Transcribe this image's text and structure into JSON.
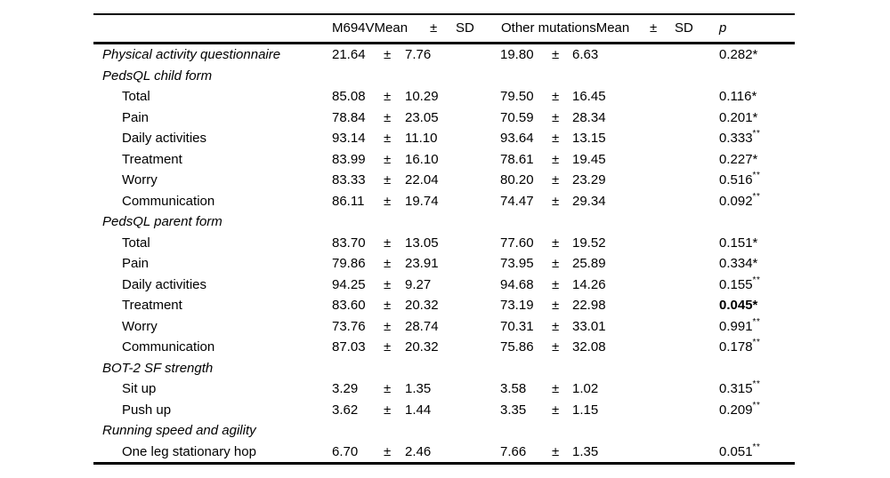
{
  "table": {
    "header": {
      "group1": "M694VMean",
      "pm": "±",
      "sd": "SD",
      "group2": "Other mutationsMean",
      "p": "p"
    },
    "symbols": {
      "plus_minus": "±"
    },
    "rows": [
      {
        "label": "Physical activity questionnaire",
        "indent": false,
        "italic": true,
        "m694v_mean": "21.64",
        "m694v_sd": "7.76",
        "other_mean": "19.80",
        "other_sd": "6.63",
        "p_value": "0.282",
        "p_mark": "*",
        "p_bold": false
      },
      {
        "label": "PedsQL child form",
        "indent": false,
        "italic": true,
        "m694v_mean": "",
        "m694v_sd": "",
        "other_mean": "",
        "other_sd": "",
        "p_value": "",
        "p_mark": "",
        "p_bold": false
      },
      {
        "label": "Total",
        "indent": true,
        "italic": false,
        "m694v_mean": "85.08",
        "m694v_sd": "10.29",
        "other_mean": "79.50",
        "other_sd": "16.45",
        "p_value": "0.116",
        "p_mark": "*",
        "p_bold": false
      },
      {
        "label": "Pain",
        "indent": true,
        "italic": false,
        "m694v_mean": "78.84",
        "m694v_sd": "23.05",
        "other_mean": "70.59",
        "other_sd": "28.34",
        "p_value": "0.201",
        "p_mark": "*",
        "p_bold": false
      },
      {
        "label": "Daily activities",
        "indent": true,
        "italic": false,
        "m694v_mean": "93.14",
        "m694v_sd": "11.10",
        "other_mean": "93.64",
        "other_sd": "13.15",
        "p_value": "0.333",
        "p_mark": "**",
        "p_bold": false
      },
      {
        "label": "Treatment",
        "indent": true,
        "italic": false,
        "m694v_mean": "83.99",
        "m694v_sd": "16.10",
        "other_mean": "78.61",
        "other_sd": "19.45",
        "p_value": "0.227",
        "p_mark": "*",
        "p_bold": false
      },
      {
        "label": "Worry",
        "indent": true,
        "italic": false,
        "m694v_mean": "83.33",
        "m694v_sd": "22.04",
        "other_mean": "80.20",
        "other_sd": "23.29",
        "p_value": "0.516",
        "p_mark": "**",
        "p_bold": false
      },
      {
        "label": "Communication",
        "indent": true,
        "italic": false,
        "m694v_mean": "86.11",
        "m694v_sd": "19.74",
        "other_mean": "74.47",
        "other_sd": "29.34",
        "p_value": "0.092",
        "p_mark": "**",
        "p_bold": false
      },
      {
        "label": "PedsQL parent form",
        "indent": false,
        "italic": true,
        "m694v_mean": "",
        "m694v_sd": "",
        "other_mean": "",
        "other_sd": "",
        "p_value": "",
        "p_mark": "",
        "p_bold": false
      },
      {
        "label": "Total",
        "indent": true,
        "italic": false,
        "m694v_mean": "83.70",
        "m694v_sd": "13.05",
        "other_mean": "77.60",
        "other_sd": "19.52",
        "p_value": "0.151",
        "p_mark": "*",
        "p_bold": false
      },
      {
        "label": "Pain",
        "indent": true,
        "italic": false,
        "m694v_mean": "79.86",
        "m694v_sd": "23.91",
        "other_mean": "73.95",
        "other_sd": "25.89",
        "p_value": "0.334",
        "p_mark": "*",
        "p_bold": false
      },
      {
        "label": "Daily activities",
        "indent": true,
        "italic": false,
        "m694v_mean": "94.25",
        "m694v_sd": "9.27",
        "other_mean": "94.68",
        "other_sd": "14.26",
        "p_value": "0.155",
        "p_mark": "**",
        "p_bold": false
      },
      {
        "label": "Treatment",
        "indent": true,
        "italic": false,
        "m694v_mean": "83.60",
        "m694v_sd": "20.32",
        "other_mean": "73.19",
        "other_sd": "22.98",
        "p_value": "0.045",
        "p_mark": "*",
        "p_bold": true
      },
      {
        "label": "Worry",
        "indent": true,
        "italic": false,
        "m694v_mean": "73.76",
        "m694v_sd": "28.74",
        "other_mean": "70.31",
        "other_sd": "33.01",
        "p_value": "0.991",
        "p_mark": "**",
        "p_bold": false
      },
      {
        "label": "Communication",
        "indent": true,
        "italic": false,
        "m694v_mean": "87.03",
        "m694v_sd": "20.32",
        "other_mean": "75.86",
        "other_sd": "32.08",
        "p_value": "0.178",
        "p_mark": "**",
        "p_bold": false
      },
      {
        "label": "BOT-2 SF strength",
        "indent": false,
        "italic": true,
        "m694v_mean": "",
        "m694v_sd": "",
        "other_mean": "",
        "other_sd": "",
        "p_value": "",
        "p_mark": "",
        "p_bold": false
      },
      {
        "label": "Sit up",
        "indent": true,
        "italic": false,
        "m694v_mean": "3.29",
        "m694v_sd": "1.35",
        "other_mean": "3.58",
        "other_sd": "1.02",
        "p_value": "0.315",
        "p_mark": "**",
        "p_bold": false
      },
      {
        "label": "Push up",
        "indent": true,
        "italic": false,
        "m694v_mean": "3.62",
        "m694v_sd": "1.44",
        "other_mean": "3.35",
        "other_sd": "1.15",
        "p_value": "0.209",
        "p_mark": "**",
        "p_bold": false
      },
      {
        "label": "Running speed and agility",
        "indent": false,
        "italic": true,
        "m694v_mean": "",
        "m694v_sd": "",
        "other_mean": "",
        "other_sd": "",
        "p_value": "",
        "p_mark": "",
        "p_bold": false
      },
      {
        "label": "One leg stationary hop",
        "indent": true,
        "italic": false,
        "m694v_mean": "6.70",
        "m694v_sd": "2.46",
        "other_mean": "7.66",
        "other_sd": "1.35",
        "p_value": "0.051",
        "p_mark": "**",
        "p_bold": false
      }
    ]
  }
}
